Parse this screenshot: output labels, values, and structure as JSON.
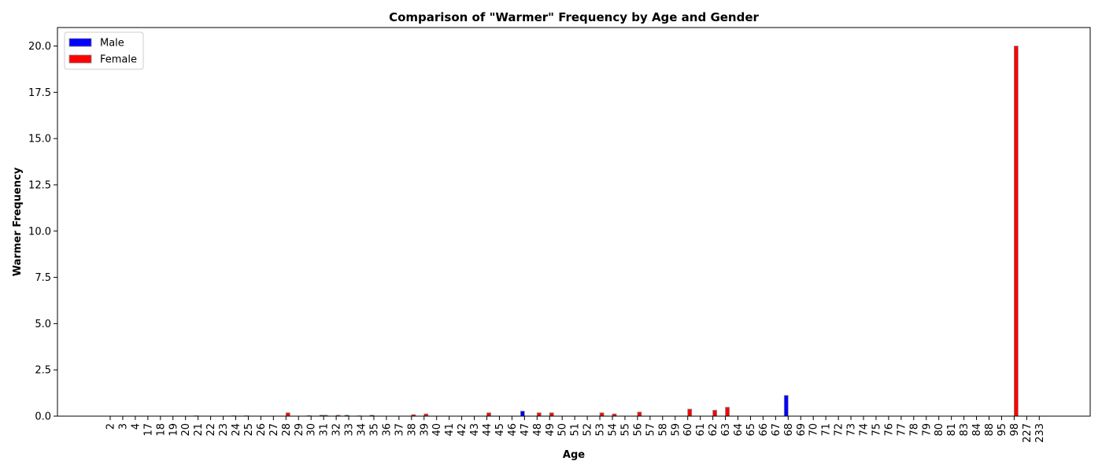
{
  "chart_data": {
    "type": "bar",
    "title": "Comparison of \"Warmer\" Frequency by Age and Gender",
    "xlabel": "Age",
    "ylabel": "Warmer Frequency",
    "ylim": [
      0,
      21
    ],
    "yticks": [
      0.0,
      2.5,
      5.0,
      7.5,
      10.0,
      12.5,
      15.0,
      17.5,
      20.0
    ],
    "ytick_labels": [
      "0.0",
      "2.5",
      "5.0",
      "7.5",
      "10.0",
      "12.5",
      "15.0",
      "17.5",
      "20.0"
    ],
    "legend_position": "top-left",
    "categories": [
      "2",
      "3",
      "4",
      "17",
      "18",
      "19",
      "20",
      "21",
      "22",
      "23",
      "24",
      "25",
      "26",
      "27",
      "28",
      "29",
      "30",
      "31",
      "32",
      "33",
      "34",
      "35",
      "36",
      "37",
      "38",
      "39",
      "40",
      "41",
      "42",
      "43",
      "44",
      "45",
      "46",
      "47",
      "48",
      "49",
      "50",
      "51",
      "52",
      "53",
      "54",
      "55",
      "56",
      "57",
      "58",
      "59",
      "60",
      "61",
      "62",
      "63",
      "64",
      "65",
      "66",
      "67",
      "68",
      "69",
      "70",
      "71",
      "72",
      "73",
      "74",
      "75",
      "76",
      "77",
      "78",
      "79",
      "80",
      "81",
      "83",
      "84",
      "88",
      "95",
      "98",
      "227",
      "233"
    ],
    "series": [
      {
        "name": "Male",
        "color": "#0000ff",
        "values": [
          0,
          0,
          0,
          0,
          0,
          0,
          0,
          0.02,
          0,
          0,
          0.02,
          0.02,
          0,
          0,
          0,
          0,
          0.03,
          0.05,
          0,
          0.05,
          0.02,
          0.05,
          0,
          0,
          0,
          0,
          0,
          0,
          0,
          0,
          0,
          0,
          0,
          0.27,
          0,
          0,
          0,
          0,
          0,
          0,
          0,
          0,
          0,
          0,
          0,
          0,
          0,
          0,
          0,
          0,
          0,
          0,
          0,
          0,
          1.12,
          0,
          0,
          0,
          0,
          0,
          0,
          0,
          0,
          0,
          0,
          0,
          0,
          0,
          0,
          0,
          0,
          0,
          0,
          0,
          0
        ]
      },
      {
        "name": "Female",
        "color": "#ff0000",
        "values": [
          0,
          0,
          0,
          0,
          0,
          0,
          0,
          0,
          0,
          0,
          0,
          0,
          0,
          0,
          0.18,
          0,
          0,
          0.05,
          0.05,
          0,
          0,
          0,
          0,
          0,
          0.08,
          0.12,
          0,
          0,
          0,
          0,
          0.18,
          0,
          0,
          0,
          0.18,
          0.18,
          0,
          0,
          0,
          0.18,
          0.12,
          0,
          0.22,
          0,
          0,
          0,
          0.38,
          0,
          0.32,
          0.48,
          0,
          0,
          0,
          0,
          0,
          0,
          0,
          0,
          0,
          0,
          0,
          0,
          0,
          0,
          0,
          0,
          0,
          0,
          0,
          0,
          0,
          0,
          20.0,
          0,
          0
        ]
      }
    ]
  }
}
